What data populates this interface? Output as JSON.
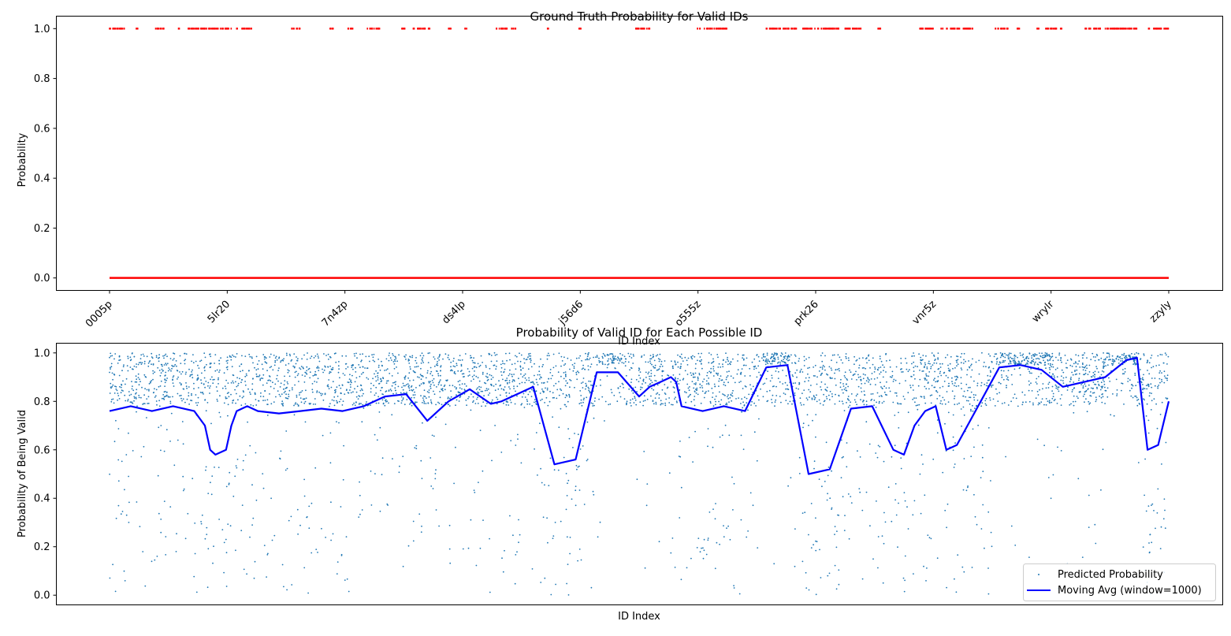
{
  "chart_data": [
    {
      "type": "scatter",
      "title": "Ground Truth Probability for Valid IDs",
      "xlabel": "ID Index",
      "ylabel": "Probability",
      "ylim": [
        -0.05,
        1.05
      ],
      "xlim": [
        -0.05,
        1.05
      ],
      "yticks": [
        "0.0",
        "0.2",
        "0.4",
        "0.6",
        "0.8",
        "1.0"
      ],
      "ytick_values": [
        0.0,
        0.2,
        0.4,
        0.6,
        0.8,
        1.0
      ],
      "xticks": [
        "0005p",
        "5lr20",
        "7n4zp",
        "ds4lp",
        "j56d6",
        "o555z",
        "prk26",
        "vnr5z",
        "wrylr",
        "zzyly"
      ],
      "xtick_rotation": 45,
      "grid": false,
      "color": "#ff0000",
      "series": [
        {
          "values_at_y": 0.0,
          "x_range": [
            0.0,
            1.0
          ]
        },
        {
          "values_at_y": 1.0,
          "x_clusters": [
            [
              0.0,
              0.015
            ],
            [
              0.025,
              0.027
            ],
            [
              0.042,
              0.052
            ],
            [
              0.064,
              0.066
            ],
            [
              0.072,
              0.115
            ],
            [
              0.12,
              0.122
            ],
            [
              0.125,
              0.135
            ],
            [
              0.172,
              0.18
            ],
            [
              0.208,
              0.212
            ],
            [
              0.225,
              0.23
            ],
            [
              0.243,
              0.255
            ],
            [
              0.275,
              0.28
            ],
            [
              0.285,
              0.298
            ],
            [
              0.3,
              0.303
            ],
            [
              0.32,
              0.323
            ],
            [
              0.335,
              0.338
            ],
            [
              0.365,
              0.372
            ],
            [
              0.373,
              0.384
            ],
            [
              0.413,
              0.415
            ],
            [
              0.442,
              0.445
            ],
            [
              0.496,
              0.51
            ],
            [
              0.555,
              0.583
            ],
            [
              0.62,
              0.65
            ],
            [
              0.654,
              0.69
            ],
            [
              0.694,
              0.71
            ],
            [
              0.724,
              0.728
            ],
            [
              0.765,
              0.78
            ],
            [
              0.785,
              0.787
            ],
            [
              0.79,
              0.815
            ],
            [
              0.836,
              0.85
            ],
            [
              0.856,
              0.86
            ],
            [
              0.875,
              0.878
            ],
            [
              0.883,
              0.9
            ],
            [
              0.92,
              0.97
            ],
            [
              0.98,
              1.0
            ]
          ]
        }
      ]
    },
    {
      "type": "scatter",
      "title": "Probability of Valid ID for Each Possible ID",
      "xlabel": "ID Index",
      "ylabel": "Probability of Being Valid",
      "ylim": [
        -0.04,
        1.04
      ],
      "yticks": [
        "0.0",
        "0.2",
        "0.4",
        "0.6",
        "0.8",
        "1.0"
      ],
      "ytick_values": [
        0.0,
        0.2,
        0.4,
        0.6,
        0.8,
        1.0
      ],
      "grid": false,
      "legend": {
        "placement": "lower right",
        "entries": [
          "Predicted Probability",
          "Moving Avg (window=1000)"
        ]
      },
      "series": [
        {
          "name": "Predicted Probability",
          "color": "#1f77b4",
          "marker": "."
        },
        {
          "name": "Moving Avg (window=1000)",
          "color": "#0000ff",
          "x": [
            0.0,
            0.02,
            0.04,
            0.06,
            0.08,
            0.09,
            0.095,
            0.1,
            0.11,
            0.115,
            0.12,
            0.13,
            0.14,
            0.16,
            0.18,
            0.2,
            0.22,
            0.24,
            0.26,
            0.28,
            0.3,
            0.32,
            0.34,
            0.36,
            0.37,
            0.38,
            0.4,
            0.42,
            0.44,
            0.46,
            0.48,
            0.5,
            0.51,
            0.52,
            0.53,
            0.535,
            0.54,
            0.56,
            0.58,
            0.6,
            0.62,
            0.64,
            0.66,
            0.68,
            0.7,
            0.72,
            0.74,
            0.75,
            0.76,
            0.77,
            0.78,
            0.79,
            0.8,
            0.82,
            0.84,
            0.86,
            0.88,
            0.9,
            0.92,
            0.94,
            0.96,
            0.97,
            0.98,
            0.99,
            1.0
          ],
          "values": [
            0.76,
            0.78,
            0.76,
            0.78,
            0.76,
            0.7,
            0.6,
            0.58,
            0.6,
            0.7,
            0.76,
            0.78,
            0.76,
            0.75,
            0.76,
            0.77,
            0.76,
            0.78,
            0.82,
            0.83,
            0.72,
            0.8,
            0.85,
            0.79,
            0.8,
            0.82,
            0.86,
            0.54,
            0.56,
            0.92,
            0.92,
            0.82,
            0.86,
            0.88,
            0.9,
            0.88,
            0.78,
            0.76,
            0.78,
            0.76,
            0.94,
            0.95,
            0.5,
            0.52,
            0.77,
            0.78,
            0.6,
            0.58,
            0.7,
            0.76,
            0.78,
            0.6,
            0.62,
            0.78,
            0.94,
            0.95,
            0.93,
            0.86,
            0.88,
            0.9,
            0.97,
            0.98,
            0.6,
            0.62,
            0.8
          ]
        }
      ]
    }
  ]
}
